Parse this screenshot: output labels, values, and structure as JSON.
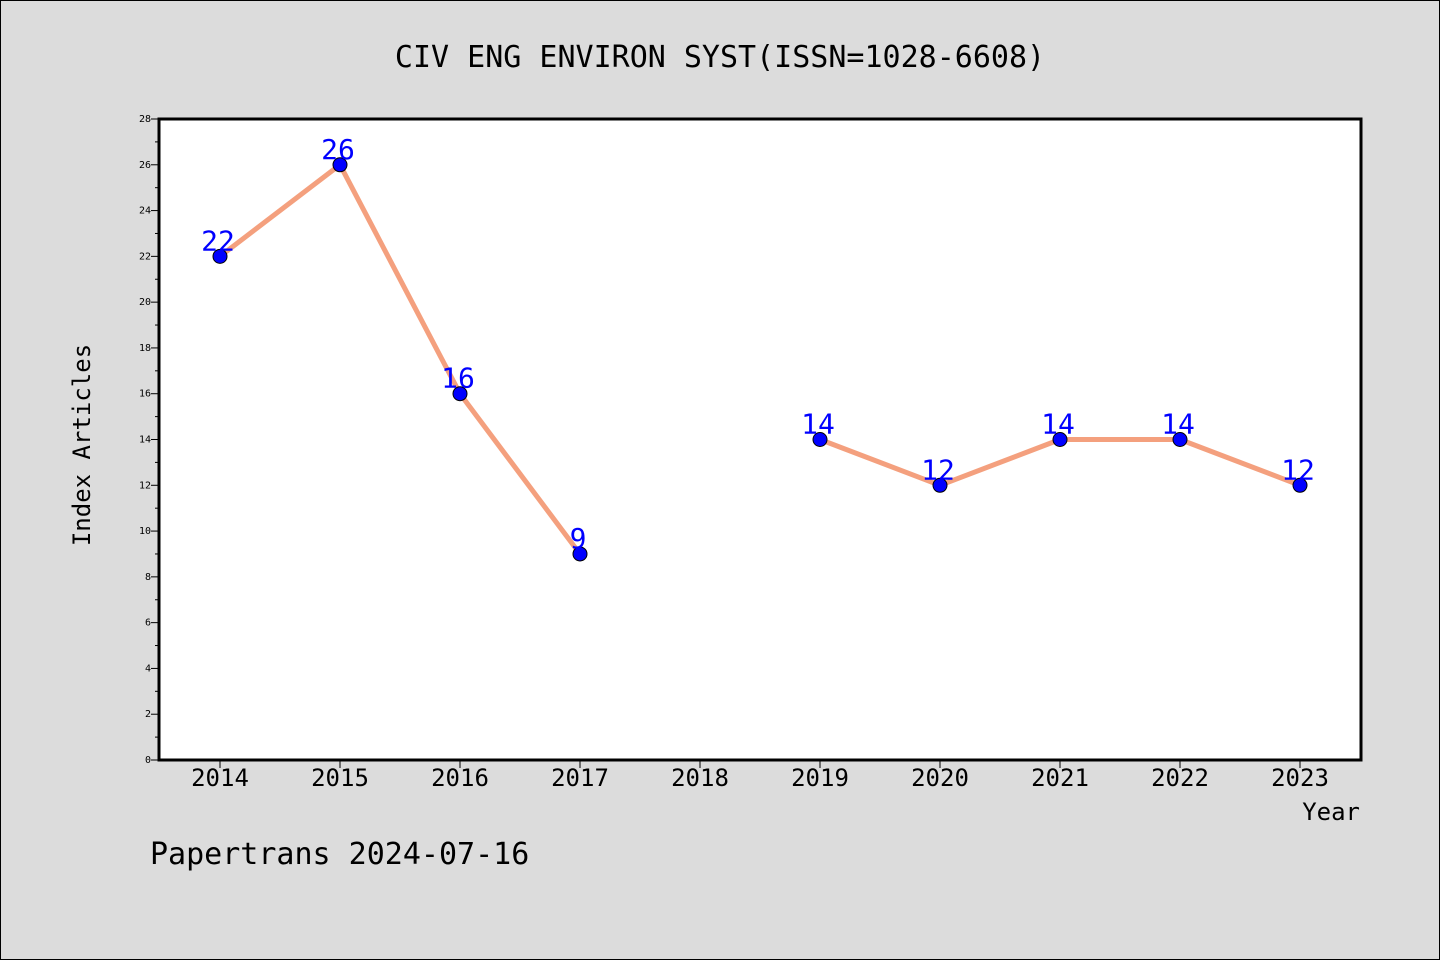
{
  "chart_data": {
    "type": "line",
    "title": "CIV ENG ENVIRON SYST(ISSN=1028-6608)",
    "xlabel": "Year",
    "ylabel": "Index Articles",
    "footer": "Papertrans 2024-07-16",
    "categories": [
      "2014",
      "2015",
      "2016",
      "2017",
      "2018",
      "2019",
      "2020",
      "2021",
      "2022",
      "2023"
    ],
    "series": [
      {
        "values": [
          22,
          26,
          16,
          9,
          null,
          14,
          12,
          14,
          14,
          12
        ]
      }
    ],
    "data_labels": [
      "22",
      "26",
      "16",
      "9",
      "",
      "14",
      "12",
      "14",
      "14",
      "12"
    ],
    "ylim": [
      0,
      28
    ],
    "y_ticks": [
      "0",
      "2",
      "4",
      "6",
      "8",
      "10",
      "12",
      "14",
      "16",
      "18",
      "20",
      "22",
      "24",
      "26",
      "28"
    ],
    "grid": false,
    "legend": "none",
    "colors": {
      "background": "#dcdcdc",
      "plot_background": "#ffffff",
      "line": "#f4a07e",
      "marker": "#0000ff",
      "data_label": "#0000ff",
      "text": "#000000"
    }
  }
}
